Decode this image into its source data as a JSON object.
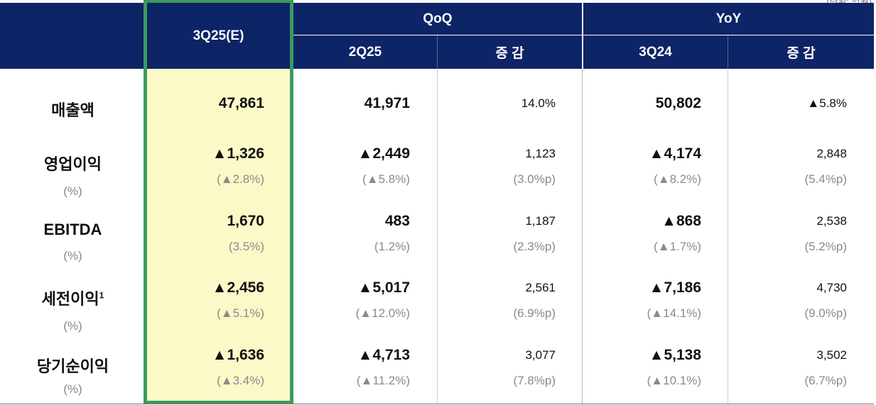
{
  "unit_note": "(단위: 억원)",
  "header": {
    "current": "3Q25(E)",
    "qoq": "QoQ",
    "yoy": "YoY",
    "prev_q": "2Q25",
    "change1": "증 감",
    "prev_y": "3Q24",
    "change2": "증 감"
  },
  "rows": [
    {
      "label": "매출액",
      "sup": "",
      "sub": "",
      "cur": "47,861",
      "cur_pct": "",
      "q": "41,971",
      "q_pct": "",
      "qchg": "14.0%",
      "qchg_pct": "",
      "y": "50,802",
      "y_pct": "",
      "ychg": "▲5.8%",
      "ychg_pct": ""
    },
    {
      "label": "영업이익",
      "sup": "",
      "sub": "(%)",
      "cur": "▲1,326",
      "cur_pct": "(▲2.8%)",
      "q": "▲2,449",
      "q_pct": "(▲5.8%)",
      "qchg": "1,123",
      "qchg_pct": "(3.0%p)",
      "y": "▲4,174",
      "y_pct": "(▲8.2%)",
      "ychg": "2,848",
      "ychg_pct": "(5.4%p)"
    },
    {
      "label": "EBITDA",
      "sup": "",
      "sub": "(%)",
      "cur": "1,670",
      "cur_pct": "(3.5%)",
      "q": "483",
      "q_pct": "(1.2%)",
      "qchg": "1,187",
      "qchg_pct": "(2.3%p)",
      "y": "▲868",
      "y_pct": "(▲1.7%)",
      "ychg": "2,538",
      "ychg_pct": "(5.2%p)"
    },
    {
      "label": "세전이익",
      "sup": "1",
      "sub": "(%)",
      "cur": "▲2,456",
      "cur_pct": "(▲5.1%)",
      "q": "▲5,017",
      "q_pct": "(▲12.0%)",
      "qchg": "2,561",
      "qchg_pct": "(6.9%p)",
      "y": "▲7,186",
      "y_pct": "(▲14.1%)",
      "ychg": "4,730",
      "ychg_pct": "(9.0%p)"
    },
    {
      "label": "당기순이익",
      "sup": "",
      "sub": "(%)",
      "cur": "▲1,636",
      "cur_pct": "(▲3.4%)",
      "q": "▲4,713",
      "q_pct": "(▲11.2%)",
      "qchg": "3,077",
      "qchg_pct": "(7.8%p)",
      "y": "▲5,138",
      "y_pct": "(▲10.1%)",
      "ychg": "3,502",
      "ychg_pct": "(6.7%p)"
    }
  ]
}
